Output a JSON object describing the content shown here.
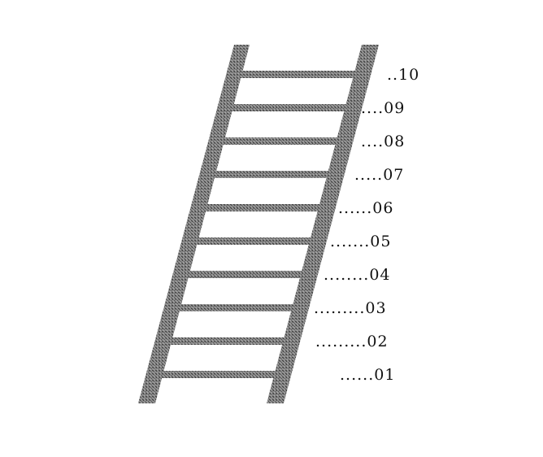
{
  "figure": {
    "subject": "ladder",
    "colors": {
      "background": "#ffffff",
      "wood": "#7a7a7a",
      "wood_dark": "#3a3a3a",
      "wood_light": "#b4b4b4",
      "label": "#111111"
    },
    "rung_labels": [
      "01",
      "02",
      "03",
      "04",
      "05",
      "06",
      "07",
      "08",
      "09",
      "10"
    ],
    "label_prefixes": [
      "......",
      ".........",
      ".........",
      "........",
      ".......",
      "......",
      ".....",
      "....",
      "....",
      ".."
    ]
  }
}
